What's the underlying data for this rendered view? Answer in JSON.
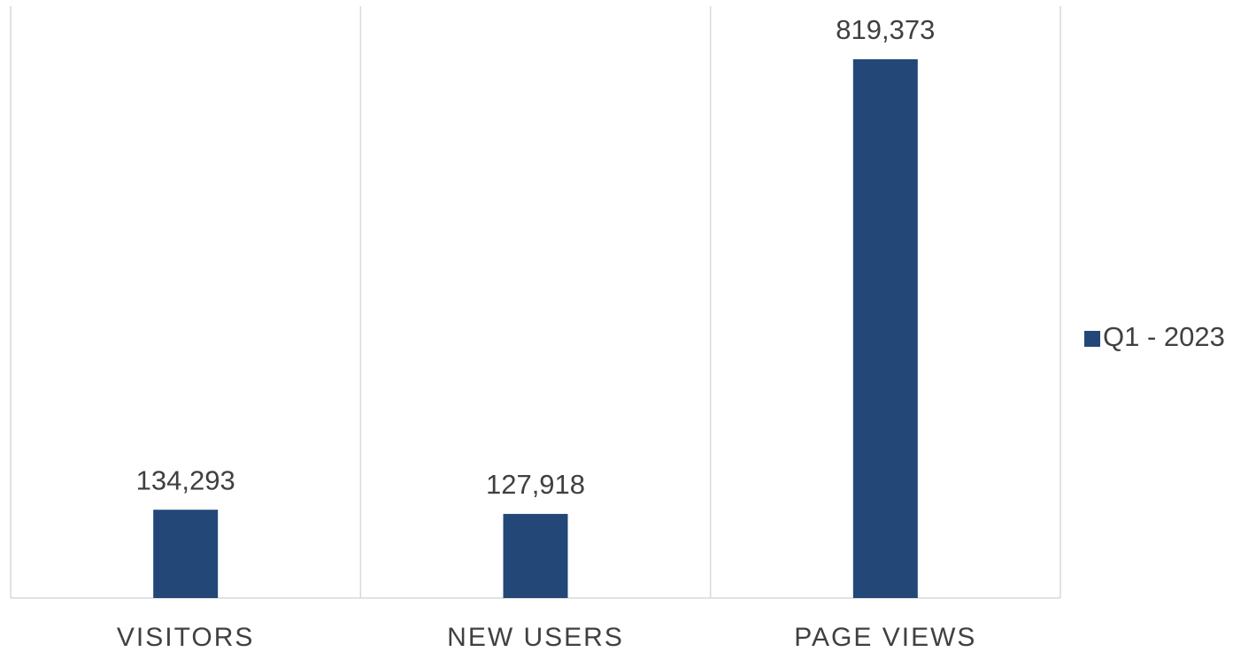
{
  "chart_data": {
    "type": "bar",
    "categories": [
      "VISITORS",
      "NEW USERS",
      "PAGE VIEWS"
    ],
    "series": [
      {
        "name": "Q1 - 2023",
        "color": "#234878",
        "values": [
          134293,
          127918,
          819373
        ],
        "value_labels": [
          "134,293",
          "127,918",
          "819,373"
        ]
      }
    ],
    "ylim": [
      0,
      900000
    ],
    "legend": "right"
  }
}
